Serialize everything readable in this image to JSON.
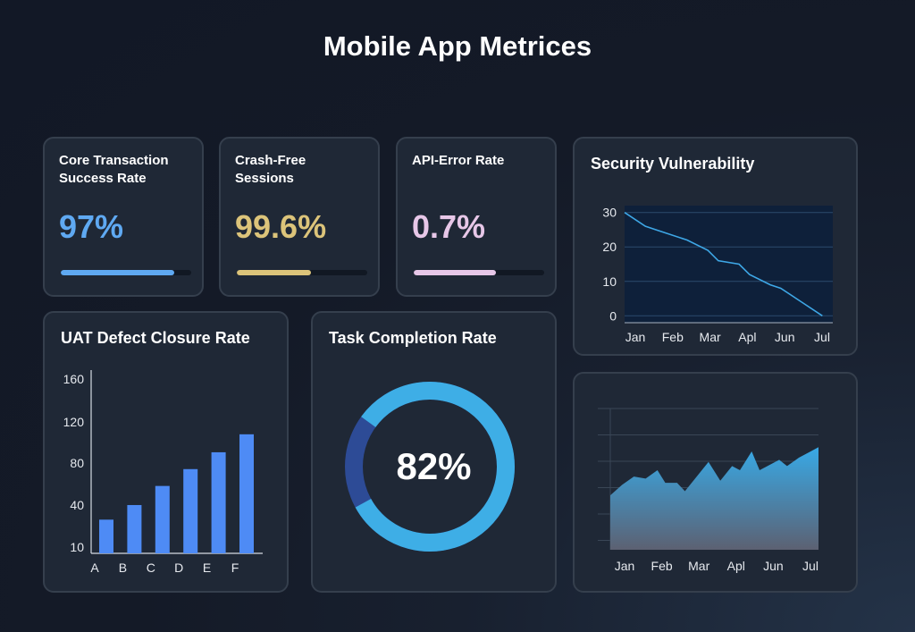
{
  "page": {
    "title": "Mobile App Metrices"
  },
  "kpis": [
    {
      "label_line1": "Core Transaction",
      "label_line2": "Success Rate",
      "value": "97%",
      "progress": 0.87,
      "color": "#5fa9f2"
    },
    {
      "label_line1": "Crash-Free",
      "label_line2": "Sessions",
      "value": "99.6%",
      "progress": 0.57,
      "color": "#dcc47a"
    },
    {
      "label_line1": "API-Error Rate",
      "label_line2": "",
      "value": "0.7%",
      "progress": 0.63,
      "color": "#e7c7e8"
    }
  ],
  "security": {
    "title": "Security Vulnerability",
    "chart_data": {
      "type": "line",
      "categories": [
        "Jan",
        "Feb",
        "Mar",
        "Apl",
        "Jun",
        "Jul"
      ],
      "x": [
        0,
        0.1,
        0.15,
        0.3,
        0.4,
        0.45,
        0.55,
        0.6,
        0.7,
        0.75,
        0.85,
        0.95
      ],
      "values": [
        30,
        26,
        25,
        22,
        19,
        16,
        15,
        12,
        9,
        8,
        4,
        0
      ],
      "yticks": [
        0,
        10,
        20,
        30
      ],
      "ylim": [
        -2,
        32
      ],
      "color": "#3ea7e6"
    }
  },
  "uat": {
    "title": "UAT Defect Closure Rate",
    "chart_data": {
      "type": "bar",
      "categories": [
        "A",
        "B",
        "C",
        "D",
        "E",
        "F"
      ],
      "values": [
        30,
        43,
        60,
        75,
        90,
        106
      ],
      "yticks": [
        10,
        40,
        80,
        120,
        160
      ],
      "ylim": [
        0,
        160
      ],
      "color": "#4e8bf5"
    }
  },
  "task": {
    "title": "Task Completion Rate",
    "value": "82%",
    "chart_data": {
      "type": "pie",
      "values": [
        82,
        18
      ],
      "colors": [
        "#3eaee6",
        "#2d4b96"
      ]
    }
  },
  "area": {
    "chart_data": {
      "type": "area",
      "categories": [
        "Jan",
        "Feb",
        "Mar",
        "Apl",
        "Jun",
        "Jul"
      ],
      "x": [
        0,
        0.3,
        0.6,
        0.9,
        1.2,
        1.4,
        1.7,
        1.9,
        2.2,
        2.5,
        2.8,
        3.1,
        3.3,
        3.6,
        3.8,
        4.0,
        4.3,
        4.5,
        4.8,
        5.1,
        5.3
      ],
      "values": [
        52,
        62,
        70,
        68,
        76,
        64,
        64,
        56,
        70,
        84,
        66,
        80,
        76,
        94,
        76,
        80,
        86,
        80,
        88,
        94,
        98
      ],
      "ylim": [
        0,
        135
      ],
      "gridlines": 6,
      "color_top": "#38a9e6",
      "color_bottom": "#5c6172"
    }
  }
}
